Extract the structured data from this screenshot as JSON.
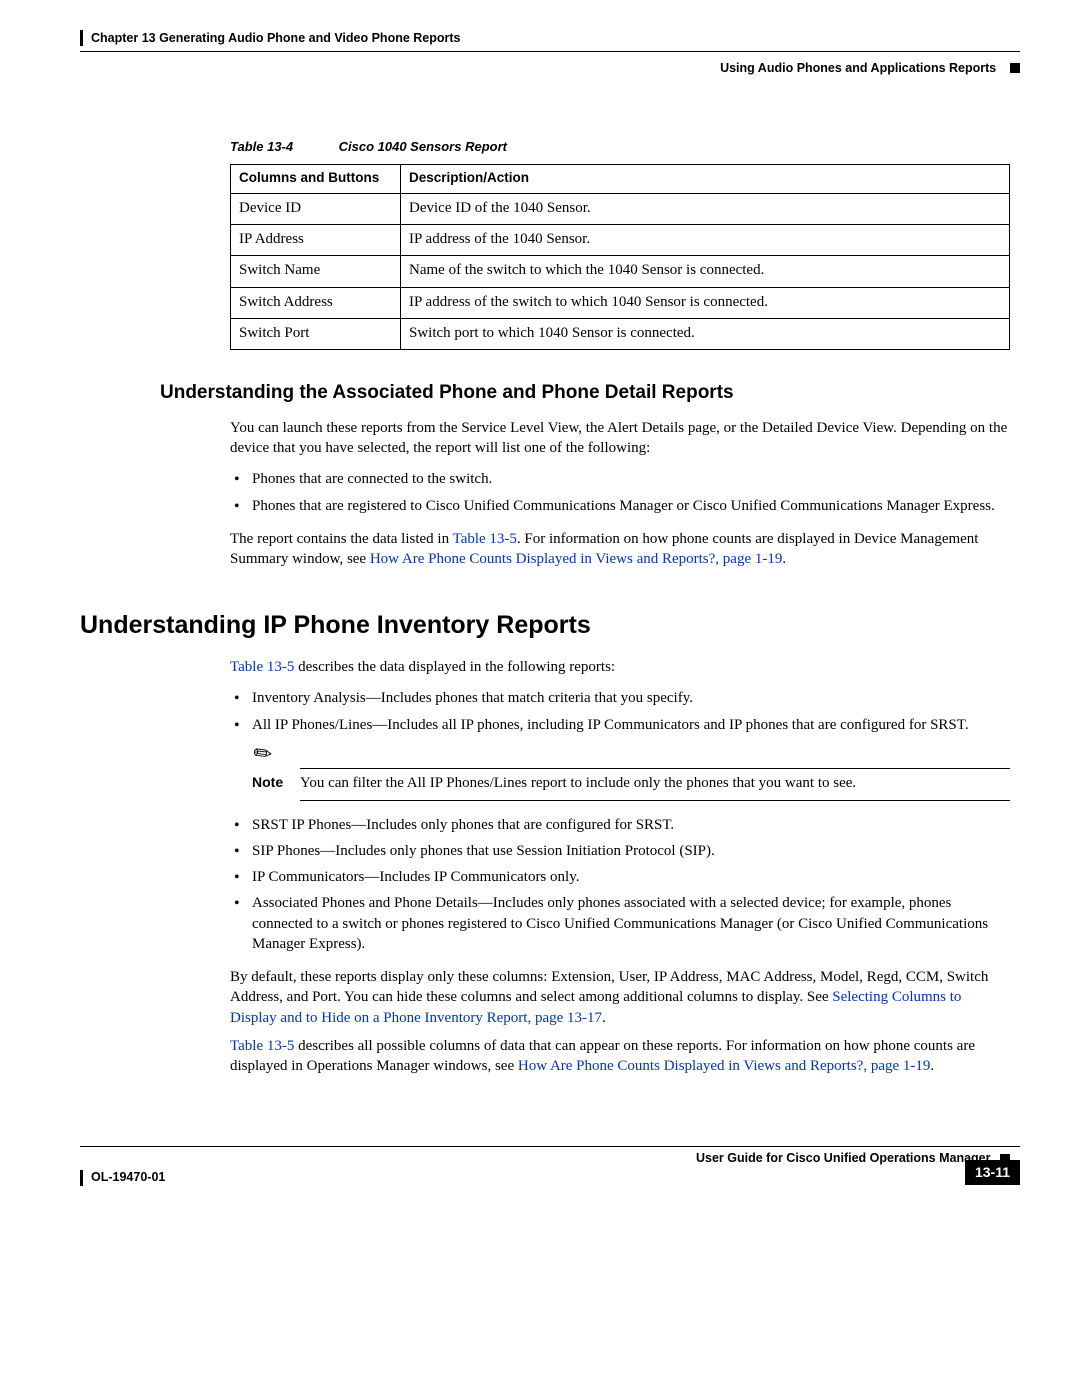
{
  "header": {
    "chapter": "Chapter 13      Generating Audio Phone and Video Phone Reports",
    "section": "Using Audio Phones and Applications Reports"
  },
  "table": {
    "caption_num": "Table 13-4",
    "caption_title": "Cisco 1040 Sensors Report",
    "headers": [
      "Columns and Buttons",
      "Description/Action"
    ],
    "rows": [
      [
        "Device ID",
        "Device ID of the 1040 Sensor."
      ],
      [
        "IP Address",
        "IP address of the 1040 Sensor."
      ],
      [
        "Switch Name",
        "Name of the switch to which the 1040 Sensor is connected."
      ],
      [
        "Switch Address",
        "IP address of the switch to which 1040 Sensor is connected."
      ],
      [
        "Switch Port",
        "Switch port to which 1040 Sensor is connected."
      ]
    ]
  },
  "sec1": {
    "title": "Understanding the Associated Phone and Phone Detail Reports",
    "p1": "You can launch these reports from the Service Level View, the Alert Details page, or the Detailed Device View. Depending on the device that you have selected, the report will list one of the following:",
    "b1": "Phones that are connected to the switch.",
    "b2": "Phones that are registered to Cisco Unified Communications Manager or Cisco Unified Communications Manager Express.",
    "p2a": "The report contains the data listed in ",
    "p2_link1": "Table 13-5",
    "p2b": ". For information on how phone counts are displayed in Device Management Summary window, see ",
    "p2_link2": "How Are Phone Counts Displayed in Views and Reports?, page 1-19",
    "p2c": "."
  },
  "sec2": {
    "title": "Understanding IP Phone Inventory Reports",
    "p1_link": "Table 13-5",
    "p1_rest": " describes the data displayed in the following reports:",
    "b1": "Inventory Analysis—Includes phones that match criteria that you specify.",
    "b2": "All IP Phones/Lines—Includes all IP phones, including IP Communicators and IP phones that are configured for SRST.",
    "note_label": "Note",
    "note_text": "You can filter the All IP Phones/Lines report to include only the phones that you want to see.",
    "b3": "SRST IP Phones—Includes only phones that are configured for SRST.",
    "b4": "SIP Phones—Includes only phones that use Session Initiation Protocol (SIP).",
    "b5": "IP Communicators—Includes IP Communicators only.",
    "b6": "Associated Phones and Phone Details—Includes only phones associated with a selected device; for example, phones connected to a switch or phones registered to Cisco Unified Communications Manager (or Cisco Unified Communications Manager Express).",
    "p2a": "By default, these reports display only these columns: Extension, User, IP Address, MAC Address, Model, Regd, CCM, Switch Address, and Port. You can hide these columns and select among additional columns to display. See ",
    "p2_link": "Selecting Columns to Display and to Hide on a Phone Inventory Report, page 13-17",
    "p2b": ".",
    "p3_link1": "Table 13-5",
    "p3a": " describes all possible columns of data that can appear on these reports. For information on how phone counts are displayed in Operations Manager windows, see ",
    "p3_link2": "How Are Phone Counts Displayed in Views and Reports?, page 1-19",
    "p3b": "."
  },
  "footer": {
    "guide": "User Guide for Cisco Unified Operations Manager",
    "doc": "OL-19470-01",
    "page": "13-11"
  }
}
